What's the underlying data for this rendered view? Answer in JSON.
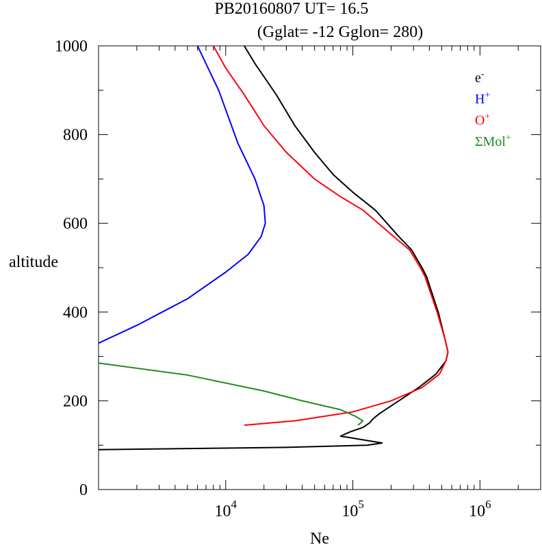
{
  "chart_data": {
    "type": "line",
    "title_line1": "PB20160807   UT=  16.5",
    "title_line2": "(Gglat= -12   Gglon=  280)",
    "xlabel": "Ne",
    "ylabel": "altitude",
    "x_scale": "log",
    "xlim": [
      1000,
      3000000
    ],
    "ylim": [
      0,
      1000
    ],
    "x_ticks": [
      {
        "value": 10000,
        "base": "10",
        "exp": "4"
      },
      {
        "value": 100000,
        "base": "10",
        "exp": "5"
      },
      {
        "value": 1000000,
        "base": "10",
        "exp": "6"
      }
    ],
    "y_ticks": [
      0,
      200,
      400,
      600,
      800,
      1000
    ],
    "legend_position": "top-right",
    "series": [
      {
        "name": "e",
        "sup": "-",
        "color": "#000000",
        "points": [
          [
            1000,
            90
          ],
          [
            30000,
            95
          ],
          [
            130000,
            100
          ],
          [
            170000,
            105
          ],
          [
            120000,
            112
          ],
          [
            90000,
            118
          ],
          [
            80000,
            120
          ],
          [
            95000,
            130
          ],
          [
            120000,
            140
          ],
          [
            135000,
            150
          ],
          [
            145000,
            160
          ],
          [
            160000,
            170
          ],
          [
            180000,
            180
          ],
          [
            230000,
            200
          ],
          [
            330000,
            230
          ],
          [
            450000,
            260
          ],
          [
            540000,
            290
          ],
          [
            560000,
            310
          ],
          [
            530000,
            340
          ],
          [
            470000,
            400
          ],
          [
            380000,
            480
          ],
          [
            350000,
            500
          ],
          [
            290000,
            540
          ],
          [
            230000,
            570
          ],
          [
            150000,
            630
          ],
          [
            100000,
            670
          ],
          [
            70000,
            710
          ],
          [
            50000,
            760
          ],
          [
            35000,
            820
          ],
          [
            25000,
            890
          ],
          [
            17000,
            960
          ],
          [
            14000,
            1000
          ]
        ]
      },
      {
        "name": "H",
        "sup": "+",
        "color": "#0000ff",
        "points": [
          [
            1000,
            330
          ],
          [
            2000,
            370
          ],
          [
            5000,
            430
          ],
          [
            10000,
            490
          ],
          [
            15000,
            530
          ],
          [
            19000,
            570
          ],
          [
            20500,
            600
          ],
          [
            20000,
            640
          ],
          [
            17000,
            700
          ],
          [
            12500,
            780
          ],
          [
            8800,
            900
          ],
          [
            6000,
            1000
          ]
        ]
      },
      {
        "name": "O",
        "sup": "+",
        "color": "#ff0000",
        "points": [
          [
            14000,
            145
          ],
          [
            35000,
            155
          ],
          [
            100000,
            175
          ],
          [
            200000,
            200
          ],
          [
            350000,
            230
          ],
          [
            480000,
            260
          ],
          [
            540000,
            290
          ],
          [
            560000,
            310
          ],
          [
            530000,
            340
          ],
          [
            460000,
            400
          ],
          [
            370000,
            480
          ],
          [
            340000,
            500
          ],
          [
            280000,
            540
          ],
          [
            210000,
            570
          ],
          [
            120000,
            630
          ],
          [
            80000,
            660
          ],
          [
            50000,
            700
          ],
          [
            30000,
            760
          ],
          [
            20000,
            820
          ],
          [
            14000,
            890
          ],
          [
            10000,
            950
          ],
          [
            8000,
            1000
          ]
        ]
      },
      {
        "name": "ΣMol",
        "sup": "+",
        "color": "#228b22",
        "points": [
          [
            1000,
            285
          ],
          [
            5000,
            258
          ],
          [
            20000,
            222
          ],
          [
            40000,
            200
          ],
          [
            80000,
            180
          ],
          [
            105000,
            165
          ],
          [
            120000,
            155
          ],
          [
            110000,
            145
          ]
        ]
      }
    ]
  }
}
